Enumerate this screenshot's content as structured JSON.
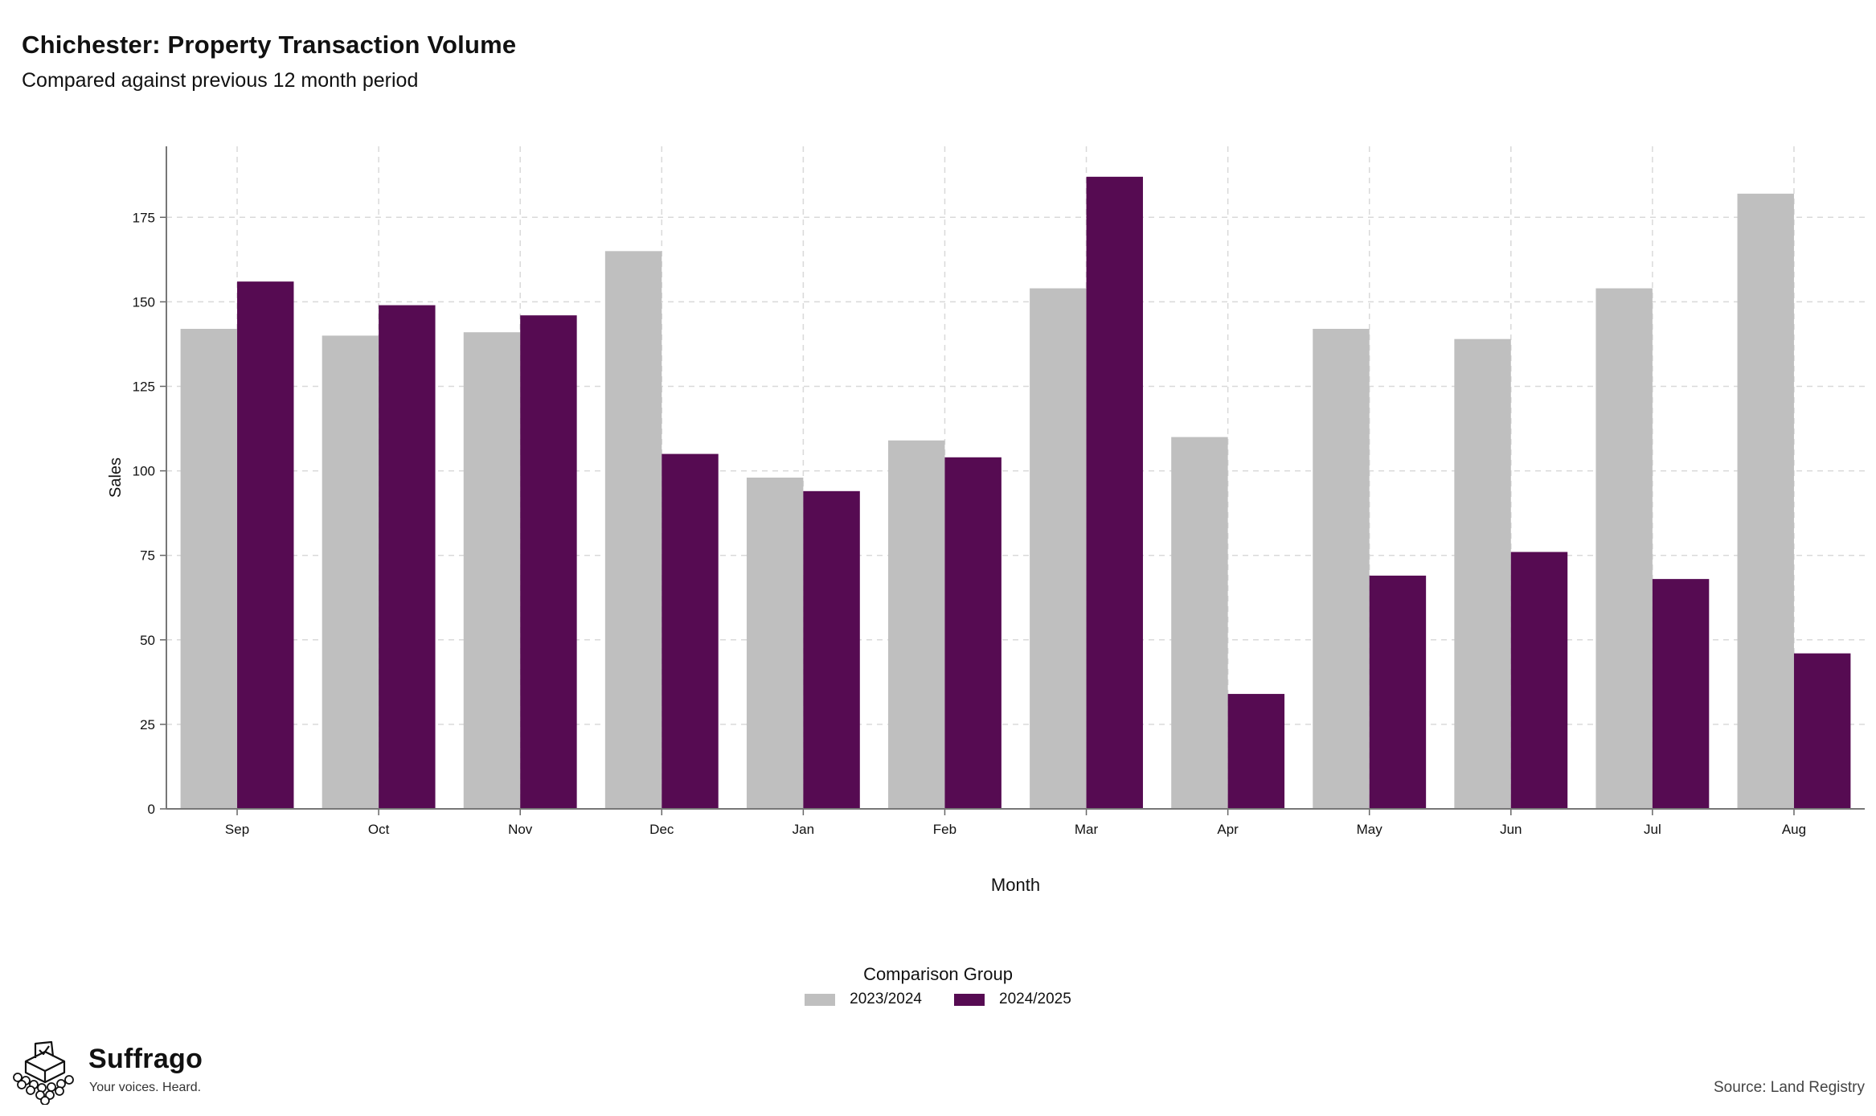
{
  "chart_data": {
    "type": "bar",
    "title": "Chichester: Property Transaction Volume",
    "subtitle": "Compared against previous 12 month period",
    "xlabel": "Month",
    "ylabel": "Sales",
    "categories": [
      "Sep",
      "Oct",
      "Nov",
      "Dec",
      "Jan",
      "Feb",
      "Mar",
      "Apr",
      "May",
      "Jun",
      "Jul",
      "Aug"
    ],
    "series": [
      {
        "name": "2023/2024",
        "color": "#bfbfbf",
        "values": [
          142,
          140,
          141,
          165,
          98,
          109,
          154,
          110,
          142,
          139,
          154,
          182
        ]
      },
      {
        "name": "2024/2025",
        "color": "#560b52",
        "values": [
          156,
          149,
          146,
          105,
          94,
          104,
          187,
          34,
          69,
          76,
          68,
          46
        ]
      }
    ],
    "ylim": [
      0,
      196
    ],
    "yticks": [
      0,
      25,
      50,
      75,
      100,
      125,
      150,
      175
    ],
    "grid": true,
    "legend_title": "Comparison Group",
    "legend_position": "bottom"
  },
  "branding": {
    "name": "Suffrago",
    "tagline": "Your voices. Heard.",
    "logo_icon": "ballot-box-icon"
  },
  "source": "Source: Land Registry"
}
